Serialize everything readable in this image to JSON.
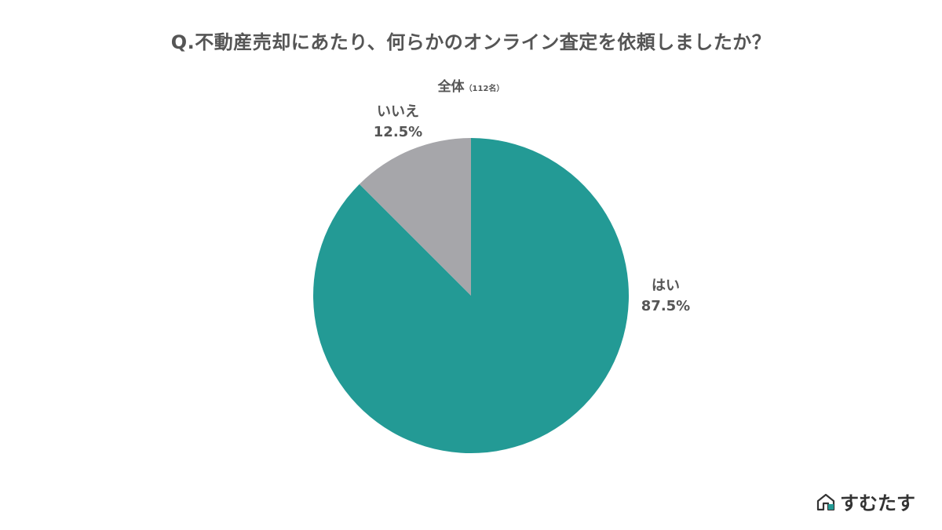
{
  "chart_data": {
    "type": "pie",
    "title": "Q.不動産売却にあたり、何らかのオンライン査定を依頼しましたか？",
    "subtitle": "全体",
    "subtitle_note": "（112名）",
    "slices": [
      {
        "label": "はい",
        "value": 87.5,
        "value_label": "87.5%",
        "color": "#239a95"
      },
      {
        "label": "いいえ",
        "value": 12.5,
        "value_label": "12.5%",
        "color": "#a6a6aa"
      }
    ]
  },
  "brand": {
    "name": "すむたす",
    "accent": "#239a95"
  }
}
